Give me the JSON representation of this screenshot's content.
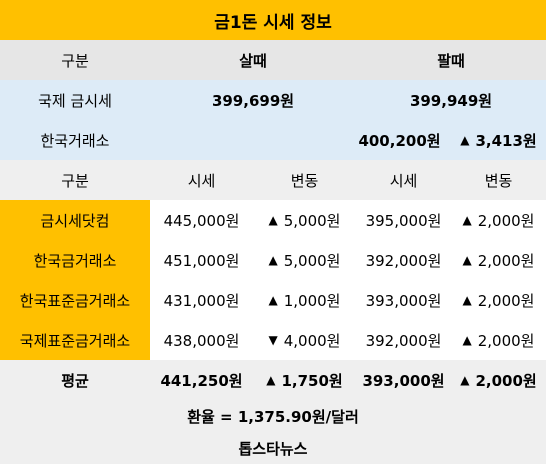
{
  "title": "금1돈 시세 정보",
  "header1": {
    "category": "구분",
    "buy": "살때",
    "sell": "팔때"
  },
  "international": {
    "label": "국제 금시세",
    "buy": "399,699원",
    "sell": "399,949원"
  },
  "krx": {
    "label": "한국거래소",
    "sell_price": "400,200원",
    "change_arrow": "▲",
    "change": "3,413원"
  },
  "header2": {
    "category": "구분",
    "price": "시세",
    "change": "변동",
    "price2": "시세",
    "change2": "변동"
  },
  "rows": [
    {
      "name": "금시세닷컴",
      "buy_price": "445,000원",
      "buy_arrow": "▲",
      "buy_change": "5,000원",
      "sell_price": "395,000원",
      "sell_arrow": "▲",
      "sell_change": "2,000원"
    },
    {
      "name": "한국금거래소",
      "buy_price": "451,000원",
      "buy_arrow": "▲",
      "buy_change": "5,000원",
      "sell_price": "392,000원",
      "sell_arrow": "▲",
      "sell_change": "2,000원"
    },
    {
      "name": "한국표준금거래소",
      "buy_price": "431,000원",
      "buy_arrow": "▲",
      "buy_change": "1,000원",
      "sell_price": "393,000원",
      "sell_arrow": "▲",
      "sell_change": "2,000원"
    },
    {
      "name": "국제표준금거래소",
      "buy_price": "438,000원",
      "buy_arrow": "▼",
      "buy_change": "4,000원",
      "sell_price": "392,000원",
      "sell_arrow": "▲",
      "sell_change": "2,000원"
    }
  ],
  "average": {
    "label": "평균",
    "buy_price": "441,250원",
    "buy_arrow": "▲",
    "buy_change": "1,750원",
    "sell_price": "393,000원",
    "sell_arrow": "▲",
    "sell_change": "2,000원"
  },
  "exchange_rate": "환율 = 1,375.90원/달러",
  "source": "톱스타뉴스"
}
